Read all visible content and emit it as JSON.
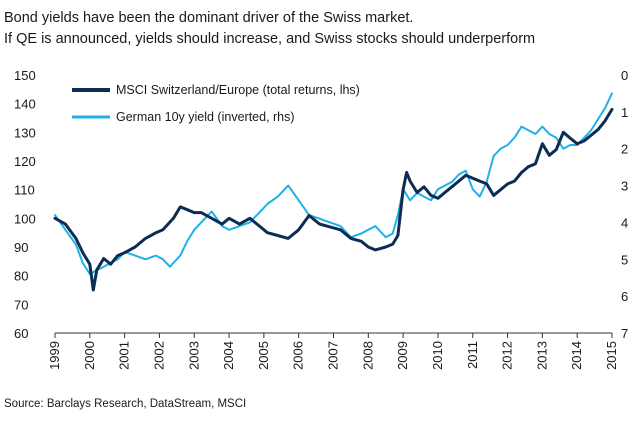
{
  "title": {
    "line1": "Bond yields have been the dominant driver of the Swiss market.",
    "line2": "If QE is announced, yields should increase, and Swiss stocks should underperform"
  },
  "source": "Source: Barclays Research, DataStream, MSCI",
  "colors": {
    "msci": "#0d2c54",
    "bund": "#1fb1e6",
    "axis": "#333333"
  },
  "chart_data": {
    "type": "line",
    "title": "",
    "left_axis": {
      "ylim": [
        60,
        150
      ],
      "ticks": [
        "60",
        "70",
        "80",
        "90",
        "100",
        "110",
        "120",
        "130",
        "140",
        "150"
      ]
    },
    "right_axis": {
      "ylim": [
        0,
        7
      ],
      "inverted": true,
      "ticks": [
        "0",
        "1",
        "2",
        "3",
        "4",
        "5",
        "6",
        "7"
      ]
    },
    "x_axis": {
      "xlim": [
        1999,
        2015
      ],
      "ticks": [
        "1999",
        "2000",
        "2001",
        "2002",
        "2003",
        "2004",
        "2005",
        "2006",
        "2007",
        "2008",
        "2009",
        "2010",
        "2011",
        "2012",
        "2013",
        "2014",
        "2015"
      ]
    },
    "legend": {
      "placement": "top-left"
    },
    "grid": false,
    "series": [
      {
        "name": "MSCI Switzerland/Europe (total returns, lhs)",
        "axis": "left",
        "x": [
          1999.0,
          1999.3,
          1999.6,
          1999.8,
          2000.0,
          2000.1,
          2000.2,
          2000.4,
          2000.6,
          2000.8,
          2001.0,
          2001.3,
          2001.6,
          2001.9,
          2002.1,
          2002.4,
          2002.6,
          2002.8,
          2003.0,
          2003.2,
          2003.5,
          2003.8,
          2004.0,
          2004.3,
          2004.6,
          2004.9,
          2005.1,
          2005.4,
          2005.7,
          2006.0,
          2006.3,
          2006.6,
          2006.9,
          2007.2,
          2007.5,
          2007.8,
          2008.0,
          2008.2,
          2008.5,
          2008.7,
          2008.85,
          2009.0,
          2009.1,
          2009.2,
          2009.4,
          2009.6,
          2009.8,
          2010.0,
          2010.2,
          2010.4,
          2010.6,
          2010.8,
          2011.0,
          2011.2,
          2011.4,
          2011.6,
          2011.8,
          2012.0,
          2012.2,
          2012.4,
          2012.6,
          2012.8,
          2013.0,
          2013.2,
          2013.4,
          2013.6,
          2013.8,
          2014.0,
          2014.2,
          2014.4,
          2014.6,
          2014.8,
          2015.0
        ],
        "values": [
          100,
          98,
          93,
          88,
          84,
          75,
          82,
          86,
          84,
          87,
          88,
          90,
          93,
          95,
          96,
          100,
          104,
          103,
          102,
          102,
          100,
          98,
          100,
          98,
          100,
          97,
          95,
          94,
          93,
          96,
          101,
          98,
          97,
          96,
          93,
          92,
          90,
          89,
          90,
          91,
          94,
          110,
          116,
          113,
          109,
          111,
          108,
          107,
          109,
          111,
          113,
          115,
          114,
          113,
          112,
          108,
          110,
          112,
          113,
          116,
          118,
          119,
          126,
          122,
          124,
          130,
          128,
          126,
          127,
          129,
          131,
          134,
          138
        ]
      },
      {
        "name": "German 10y yield (inverted, rhs)",
        "axis": "right",
        "x": [
          1999.0,
          1999.3,
          1999.6,
          1999.8,
          2000.0,
          2000.2,
          2000.4,
          2000.6,
          2000.8,
          2001.0,
          2001.3,
          2001.6,
          2001.9,
          2002.1,
          2002.3,
          2002.6,
          2002.8,
          2003.0,
          2003.2,
          2003.5,
          2003.8,
          2004.0,
          2004.3,
          2004.6,
          2004.9,
          2005.1,
          2005.4,
          2005.7,
          2006.0,
          2006.3,
          2006.6,
          2006.9,
          2007.2,
          2007.5,
          2007.8,
          2008.0,
          2008.2,
          2008.5,
          2008.7,
          2008.85,
          2009.0,
          2009.2,
          2009.4,
          2009.6,
          2009.8,
          2010.0,
          2010.2,
          2010.4,
          2010.6,
          2010.8,
          2011.0,
          2011.2,
          2011.4,
          2011.6,
          2011.8,
          2012.0,
          2012.2,
          2012.4,
          2012.6,
          2012.8,
          2013.0,
          2013.2,
          2013.4,
          2013.6,
          2013.8,
          2014.0,
          2014.2,
          2014.4,
          2014.6,
          2014.8,
          2015.0
        ],
        "values": [
          3.8,
          4.2,
          4.6,
          5.1,
          5.4,
          5.3,
          5.2,
          5.1,
          5.0,
          4.8,
          4.9,
          5.0,
          4.9,
          5.0,
          5.2,
          4.9,
          4.5,
          4.2,
          4.0,
          3.7,
          4.1,
          4.2,
          4.1,
          4.0,
          3.7,
          3.5,
          3.3,
          3.0,
          3.4,
          3.8,
          3.9,
          4.0,
          4.1,
          4.4,
          4.3,
          4.2,
          4.1,
          4.4,
          4.3,
          3.8,
          3.1,
          3.4,
          3.2,
          3.3,
          3.4,
          3.1,
          3.0,
          2.9,
          2.7,
          2.6,
          3.1,
          3.3,
          2.9,
          2.2,
          2.0,
          1.9,
          1.7,
          1.4,
          1.5,
          1.6,
          1.4,
          1.6,
          1.7,
          2.0,
          1.9,
          1.9,
          1.7,
          1.5,
          1.2,
          0.9,
          0.5
        ]
      }
    ]
  }
}
